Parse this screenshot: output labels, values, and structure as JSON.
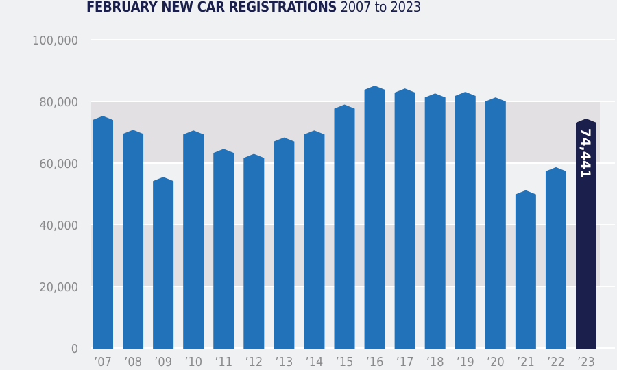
{
  "chart_data": {
    "type": "bar",
    "title": "FEBRUARY NEW CAR REGISTRATIONS",
    "subtitle": "2007 to 2023",
    "categories": [
      "’07",
      "’08",
      "’09",
      "’10",
      "’11",
      "’12",
      "’13",
      "’14",
      "’15",
      "’16",
      "’17",
      "’18",
      "’19",
      "’20",
      "’21",
      "’22",
      "’23"
    ],
    "values": [
      75300,
      70800,
      55500,
      70600,
      64600,
      63000,
      68300,
      70600,
      79000,
      85100,
      84200,
      82600,
      83100,
      81300,
      51200,
      58700,
      74441
    ],
    "highlight_label": "74,441",
    "yticks": [
      "0",
      "20,000",
      "40,000",
      "60,000",
      "80,000",
      "100,000"
    ],
    "ylim": [
      0,
      100000
    ],
    "grid": true,
    "colors": {
      "bar": "#2272b9",
      "highlight": "#1b1f4b",
      "band": "#e2e0e2",
      "background": "#f0f1f3",
      "tick": "#8a8a8c"
    }
  }
}
